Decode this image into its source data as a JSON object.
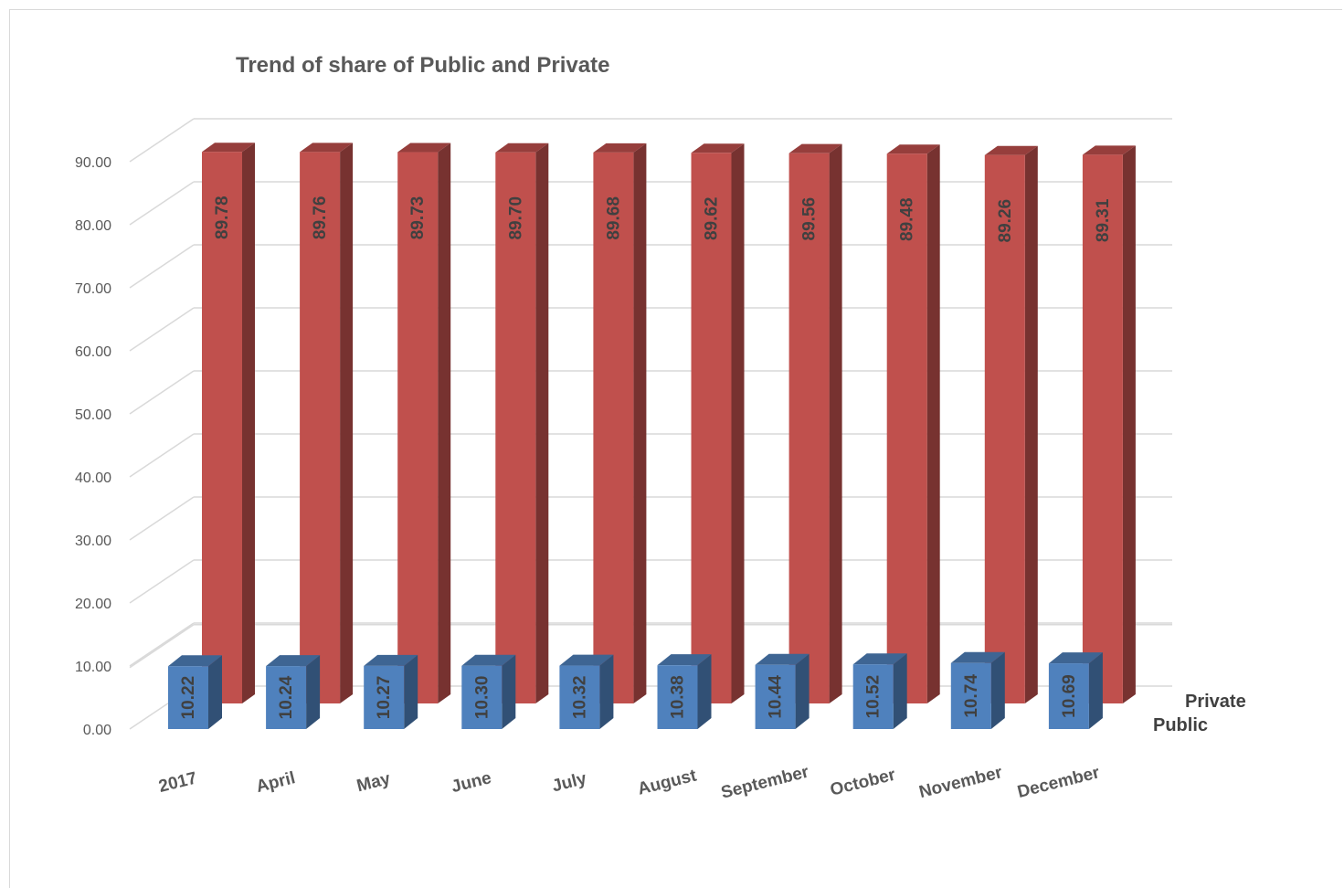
{
  "chart_data": {
    "type": "bar",
    "subtype": "3d-column",
    "title": "Trend of  share of Public and Private",
    "categories": [
      "2017",
      "April",
      "May",
      "June",
      "July",
      "August",
      "September",
      "October",
      "November",
      "December"
    ],
    "series": [
      {
        "name": "Public",
        "color": "#4F81BD",
        "values": [
          10.22,
          10.24,
          10.27,
          10.3,
          10.32,
          10.38,
          10.44,
          10.52,
          10.74,
          10.69
        ],
        "labels": [
          "10.22",
          "10.24",
          "10.27",
          "10.30",
          "10.32",
          "10.38",
          "10.44",
          "10.52",
          "10.74",
          "10.69"
        ]
      },
      {
        "name": "Private",
        "color": "#C0504D",
        "values": [
          89.78,
          89.76,
          89.73,
          89.7,
          89.68,
          89.62,
          89.56,
          89.48,
          89.26,
          89.31
        ],
        "labels": [
          "89.78",
          "89.76",
          "89.73",
          "89.70",
          "89.68",
          "89.62",
          "89.56",
          "89.48",
          "89.26",
          "89.31"
        ]
      }
    ],
    "yticks": [
      "0.00",
      "10.00",
      "20.00",
      "30.00",
      "40.00",
      "50.00",
      "60.00",
      "70.00",
      "80.00",
      "90.00"
    ],
    "ylim": [
      0,
      90
    ],
    "grid": true
  }
}
